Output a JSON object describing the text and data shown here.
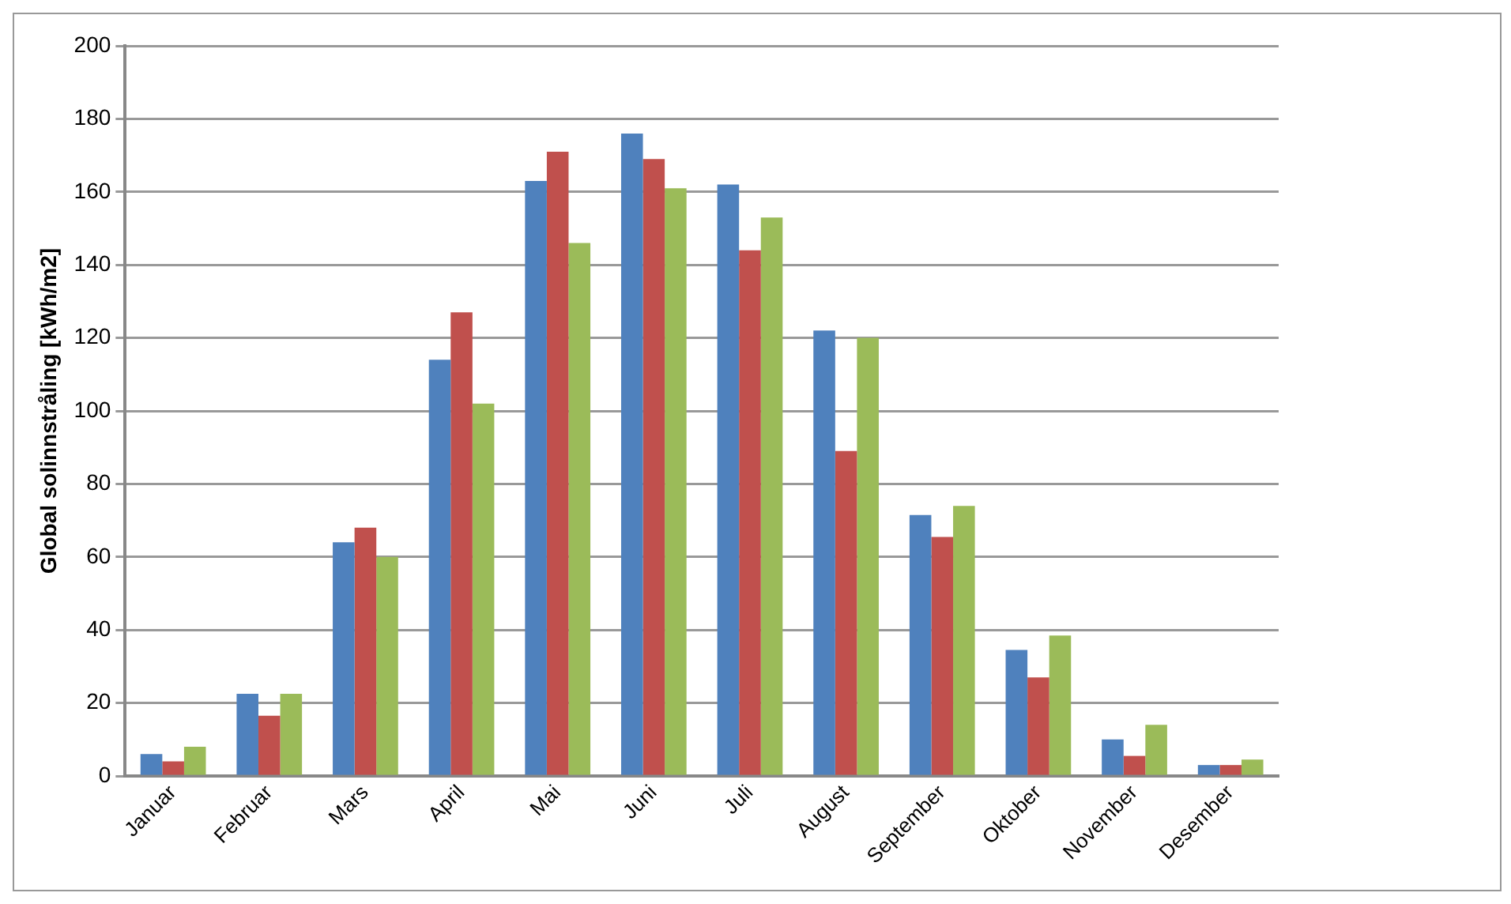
{
  "chart_data": {
    "type": "bar",
    "ylabel": "Global solinnstråling [kWh/m2]",
    "categories": [
      "Januar",
      "Februar",
      "Mars",
      "April",
      "Mai",
      "Juni",
      "Juli",
      "August",
      "September",
      "Oktober",
      "November",
      "Desember"
    ],
    "series": [
      {
        "color": "#4f81bd",
        "values": [
          6,
          22.5,
          64,
          114,
          163,
          176,
          162,
          122,
          71.5,
          34.5,
          10,
          3
        ]
      },
      {
        "color": "#c0504d",
        "values": [
          4,
          16.5,
          68,
          127,
          171,
          169,
          144,
          89,
          65.5,
          27,
          5.5,
          3
        ]
      },
      {
        "color": "#9bbb59",
        "values": [
          8,
          22.5,
          60,
          102,
          146,
          161,
          153,
          120,
          74,
          38.5,
          14,
          4.5
        ]
      }
    ],
    "ylim": [
      0,
      200
    ],
    "yticks": [
      0,
      20,
      40,
      60,
      80,
      100,
      120,
      140,
      160,
      180,
      200
    ],
    "grid": "y",
    "legend": false
  }
}
